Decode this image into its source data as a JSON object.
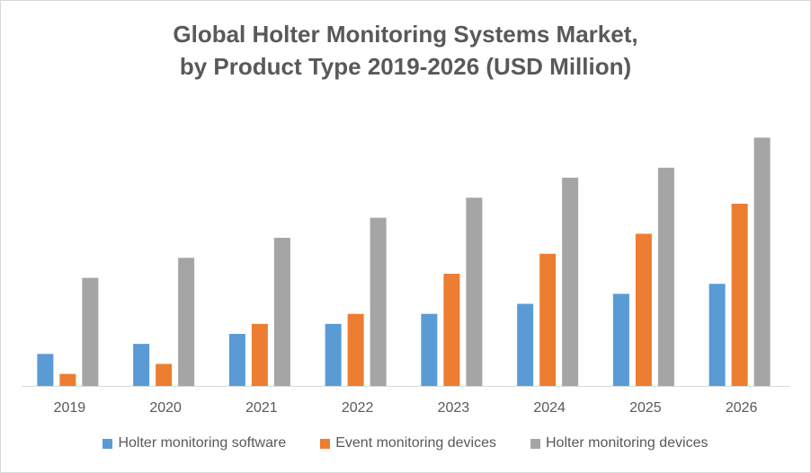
{
  "chart_data": {
    "type": "bar",
    "title_lines": [
      "Global Holter Monitoring Systems Market,",
      "by Product Type 2019-2026 (USD Million)"
    ],
    "categories": [
      "2019",
      "2020",
      "2021",
      "2022",
      "2023",
      "2024",
      "2025",
      "2026"
    ],
    "series": [
      {
        "name": "Holter monitoring software",
        "color": "#5B9BD5",
        "values": [
          32,
          42,
          52,
          62,
          72,
          82,
          92,
          102
        ]
      },
      {
        "name": "Event monitoring devices",
        "color": "#ED7D31",
        "values": [
          12,
          22,
          62,
          72,
          112,
          132,
          152,
          182
        ]
      },
      {
        "name": "Holter monitoring devices",
        "color": "#A5A5A5",
        "values": [
          108,
          128,
          148,
          168,
          188,
          208,
          218,
          248
        ]
      }
    ],
    "ylim": [
      0,
      260
    ],
    "grid": false,
    "legend_position": "bottom"
  }
}
